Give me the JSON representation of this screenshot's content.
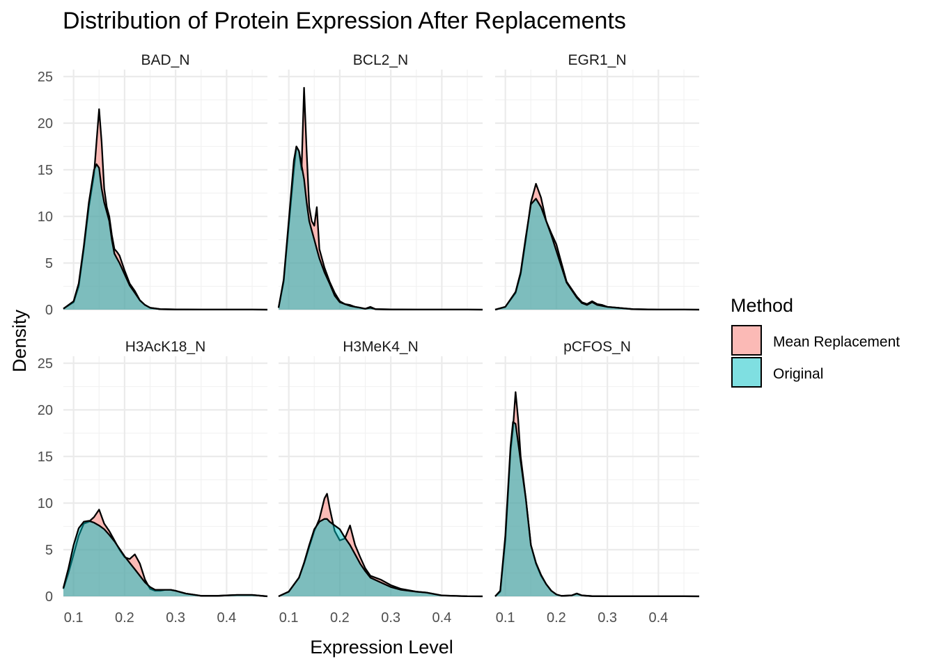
{
  "chart_data": {
    "type": "area",
    "subtype": "faceted density",
    "title": "Distribution of Protein Expression After Replacements",
    "xlabel": "Expression Level",
    "ylabel": "Density",
    "xlim": [
      0.08,
      0.48
    ],
    "ylim": [
      0,
      25
    ],
    "x_ticks": [
      0.1,
      0.2,
      0.3,
      0.4
    ],
    "x_tick_labels": [
      "0.1",
      "0.2",
      "0.3",
      "0.4"
    ],
    "y_ticks": [
      0,
      5,
      10,
      15,
      20,
      25
    ],
    "y_tick_labels": [
      "0",
      "5",
      "10",
      "15",
      "20",
      "25"
    ],
    "grid": true,
    "facet_layout": {
      "rows": 2,
      "cols": 3
    },
    "legend": {
      "title": "Method",
      "position": "right",
      "entries": [
        {
          "label": "Mean Replacement",
          "color": "#f8766d"
        },
        {
          "label": "Original",
          "color": "#00bfc4"
        }
      ]
    },
    "colors": {
      "mean": "#f8766d",
      "original": "#00bfc4",
      "outline": "#000000",
      "panel_grid": "#ebebeb"
    },
    "panels": [
      {
        "name": "BAD_N",
        "series": [
          {
            "name": "Mean Replacement",
            "x": [
              0.08,
              0.1,
              0.11,
              0.12,
              0.13,
              0.14,
              0.145,
              0.15,
              0.155,
              0.16,
              0.165,
              0.17,
              0.175,
              0.18,
              0.185,
              0.19,
              0.2,
              0.21,
              0.22,
              0.23,
              0.24,
              0.25,
              0.27,
              0.3,
              0.35,
              0.4,
              0.45,
              0.48
            ],
            "y": [
              0.1,
              0.8,
              2.5,
              6.5,
              11,
              14.5,
              18,
              21.5,
              18,
              13,
              11,
              10,
              8,
              6.5,
              6.2,
              5.8,
              4.2,
              2.8,
              2,
              1,
              0.5,
              0.2,
              0.05,
              0.02,
              0.01,
              0.01,
              0.01,
              0
            ]
          },
          {
            "name": "Original",
            "x": [
              0.08,
              0.1,
              0.11,
              0.12,
              0.13,
              0.14,
              0.145,
              0.15,
              0.155,
              0.16,
              0.165,
              0.17,
              0.175,
              0.18,
              0.185,
              0.19,
              0.2,
              0.21,
              0.22,
              0.23,
              0.24,
              0.25,
              0.27,
              0.3,
              0.35,
              0.4,
              0.45,
              0.48
            ],
            "y": [
              0.1,
              0.9,
              2.8,
              6.8,
              11.5,
              15,
              15.6,
              15.2,
              13,
              11.5,
              10.5,
              9.5,
              7.5,
              6,
              5.5,
              5,
              3.8,
              2.6,
              1.8,
              1,
              0.5,
              0.2,
              0.05,
              0.02,
              0.01,
              0.01,
              0.01,
              0
            ]
          }
        ]
      },
      {
        "name": "BCL2_N",
        "series": [
          {
            "name": "Mean Replacement",
            "x": [
              0.08,
              0.09,
              0.1,
              0.11,
              0.115,
              0.12,
              0.125,
              0.13,
              0.135,
              0.14,
              0.145,
              0.15,
              0.155,
              0.16,
              0.17,
              0.18,
              0.19,
              0.2,
              0.21,
              0.22,
              0.23,
              0.24,
              0.25,
              0.26,
              0.27,
              0.3,
              0.35,
              0.4,
              0.45,
              0.48
            ],
            "y": [
              0.2,
              3,
              9,
              15,
              17.5,
              17,
              15,
              23.8,
              17,
              11,
              9.5,
              9,
              11,
              6.5,
              4.5,
              3,
              1.8,
              0.9,
              0.6,
              0.5,
              0.3,
              0.2,
              0.1,
              0.3,
              0.05,
              0.02,
              0.01,
              0.01,
              0.01,
              0
            ]
          },
          {
            "name": "Original",
            "x": [
              0.08,
              0.09,
              0.1,
              0.11,
              0.115,
              0.12,
              0.125,
              0.13,
              0.135,
              0.14,
              0.145,
              0.15,
              0.155,
              0.16,
              0.17,
              0.18,
              0.19,
              0.2,
              0.21,
              0.22,
              0.23,
              0.24,
              0.25,
              0.26,
              0.27,
              0.3,
              0.35,
              0.4,
              0.45,
              0.48
            ],
            "y": [
              0.2,
              3.2,
              9.5,
              16,
              17.5,
              17,
              15.5,
              14,
              11.5,
              9.5,
              8.5,
              7.5,
              6.5,
              5.5,
              4,
              2.8,
              1.5,
              0.8,
              0.6,
              0.4,
              0.3,
              0.2,
              0.1,
              0.2,
              0.05,
              0.02,
              0.01,
              0.01,
              0.01,
              0
            ]
          }
        ]
      },
      {
        "name": "EGR1_N",
        "series": [
          {
            "name": "Mean Replacement",
            "x": [
              0.08,
              0.1,
              0.12,
              0.13,
              0.14,
              0.15,
              0.16,
              0.17,
              0.18,
              0.19,
              0.2,
              0.21,
              0.22,
              0.23,
              0.24,
              0.25,
              0.26,
              0.27,
              0.28,
              0.29,
              0.3,
              0.32,
              0.35,
              0.4,
              0.45,
              0.48
            ],
            "y": [
              0,
              0.3,
              1.8,
              3.8,
              7.5,
              11.5,
              13.5,
              12,
              9.5,
              8.2,
              7,
              5,
              3,
              2.2,
              1.4,
              0.8,
              0.6,
              0.9,
              0.6,
              0.5,
              0.3,
              0.2,
              0.05,
              0.01,
              0.01,
              0
            ]
          },
          {
            "name": "Original",
            "x": [
              0.08,
              0.1,
              0.12,
              0.13,
              0.14,
              0.15,
              0.16,
              0.17,
              0.18,
              0.19,
              0.2,
              0.21,
              0.22,
              0.23,
              0.24,
              0.25,
              0.26,
              0.27,
              0.28,
              0.29,
              0.3,
              0.32,
              0.35,
              0.4,
              0.45,
              0.48
            ],
            "y": [
              0,
              0.3,
              1.9,
              4,
              7.8,
              11.3,
              11.9,
              11,
              9.5,
              8,
              6.3,
              4.6,
              2.9,
              2.1,
              1.3,
              0.7,
              0.5,
              0.8,
              0.5,
              0.4,
              0.3,
              0.2,
              0.05,
              0.01,
              0.01,
              0
            ]
          }
        ]
      },
      {
        "name": "H3AcK18_N",
        "series": [
          {
            "name": "Mean Replacement",
            "x": [
              0.08,
              0.09,
              0.1,
              0.11,
              0.12,
              0.13,
              0.14,
              0.15,
              0.16,
              0.17,
              0.18,
              0.19,
              0.2,
              0.21,
              0.22,
              0.23,
              0.24,
              0.25,
              0.26,
              0.27,
              0.28,
              0.29,
              0.3,
              0.32,
              0.35,
              0.38,
              0.4,
              0.42,
              0.45,
              0.48
            ],
            "y": [
              0.8,
              2.5,
              4.5,
              6.5,
              7.8,
              8,
              8.5,
              9.3,
              7.8,
              7,
              6,
              5,
              4.2,
              4,
              4.5,
              3.5,
              1.8,
              0.8,
              0.6,
              0.6,
              0.7,
              0.7,
              0.6,
              0.3,
              0.05,
              0.05,
              0.1,
              0.15,
              0.15,
              0
            ]
          },
          {
            "name": "Original",
            "x": [
              0.08,
              0.09,
              0.1,
              0.11,
              0.12,
              0.13,
              0.14,
              0.15,
              0.16,
              0.17,
              0.18,
              0.19,
              0.2,
              0.21,
              0.22,
              0.23,
              0.24,
              0.25,
              0.26,
              0.27,
              0.28,
              0.29,
              0.3,
              0.32,
              0.35,
              0.38,
              0.4,
              0.42,
              0.45,
              0.48
            ],
            "y": [
              0.9,
              3,
              5.5,
              7.3,
              8,
              8.1,
              7.9,
              7.6,
              7.2,
              6.6,
              5.9,
              5.1,
              4.3,
              3.6,
              2.9,
              2.2,
              1.5,
              1,
              0.7,
              0.7,
              0.7,
              0.7,
              0.6,
              0.3,
              0.05,
              0.05,
              0.1,
              0.15,
              0.15,
              0
            ]
          }
        ]
      },
      {
        "name": "H3MeK4_N",
        "series": [
          {
            "name": "Mean Replacement",
            "x": [
              0.08,
              0.1,
              0.12,
              0.13,
              0.14,
              0.15,
              0.16,
              0.17,
              0.175,
              0.18,
              0.19,
              0.2,
              0.21,
              0.22,
              0.23,
              0.24,
              0.25,
              0.26,
              0.28,
              0.3,
              0.32,
              0.35,
              0.37,
              0.4,
              0.45,
              0.48
            ],
            "y": [
              0,
              0.5,
              2,
              3.5,
              5.3,
              7,
              8.3,
              10.5,
              11,
              9.5,
              7,
              6,
              6.2,
              7.6,
              5.5,
              4.2,
              3,
              2.2,
              1.8,
              1.2,
              0.8,
              0.5,
              0.4,
              0.1,
              0.01,
              0
            ]
          },
          {
            "name": "Original",
            "x": [
              0.08,
              0.1,
              0.12,
              0.13,
              0.14,
              0.15,
              0.16,
              0.17,
              0.175,
              0.18,
              0.19,
              0.2,
              0.21,
              0.22,
              0.23,
              0.24,
              0.25,
              0.26,
              0.28,
              0.3,
              0.32,
              0.35,
              0.37,
              0.4,
              0.45,
              0.48
            ],
            "y": [
              0,
              0.5,
              2,
              3.6,
              5.5,
              7.2,
              8,
              8.3,
              8.3,
              8,
              7.6,
              7.2,
              6.3,
              5.5,
              4.5,
              3.5,
              2.7,
              2,
              1.5,
              1,
              0.7,
              0.5,
              0.4,
              0.1,
              0.01,
              0
            ]
          }
        ]
      },
      {
        "name": "pCFOS_N",
        "series": [
          {
            "name": "Mean Replacement",
            "x": [
              0.08,
              0.09,
              0.1,
              0.11,
              0.115,
              0.12,
              0.125,
              0.13,
              0.14,
              0.15,
              0.16,
              0.17,
              0.18,
              0.19,
              0.2,
              0.21,
              0.23,
              0.24,
              0.25,
              0.27,
              0.3,
              0.35,
              0.4,
              0.45,
              0.48
            ],
            "y": [
              0,
              0.5,
              6,
              15.5,
              18,
              21.9,
              19,
              15,
              10.5,
              5.5,
              3.5,
              2.2,
              1.3,
              0.6,
              0.2,
              0.05,
              0.1,
              0.3,
              0.1,
              0.02,
              0.01,
              0.01,
              0.01,
              0.01,
              0
            ]
          },
          {
            "name": "Original",
            "x": [
              0.08,
              0.09,
              0.1,
              0.11,
              0.115,
              0.12,
              0.125,
              0.13,
              0.14,
              0.15,
              0.16,
              0.17,
              0.18,
              0.19,
              0.2,
              0.21,
              0.23,
              0.24,
              0.25,
              0.27,
              0.3,
              0.35,
              0.4,
              0.45,
              0.48
            ],
            "y": [
              0,
              0.6,
              6.5,
              16,
              18.7,
              18.5,
              16.5,
              14.5,
              10.5,
              5.5,
              3.6,
              2.3,
              1.3,
              0.6,
              0.2,
              0.05,
              0.1,
              0.3,
              0.1,
              0.02,
              0.01,
              0.01,
              0.01,
              0.01,
              0
            ]
          }
        ]
      }
    ]
  }
}
